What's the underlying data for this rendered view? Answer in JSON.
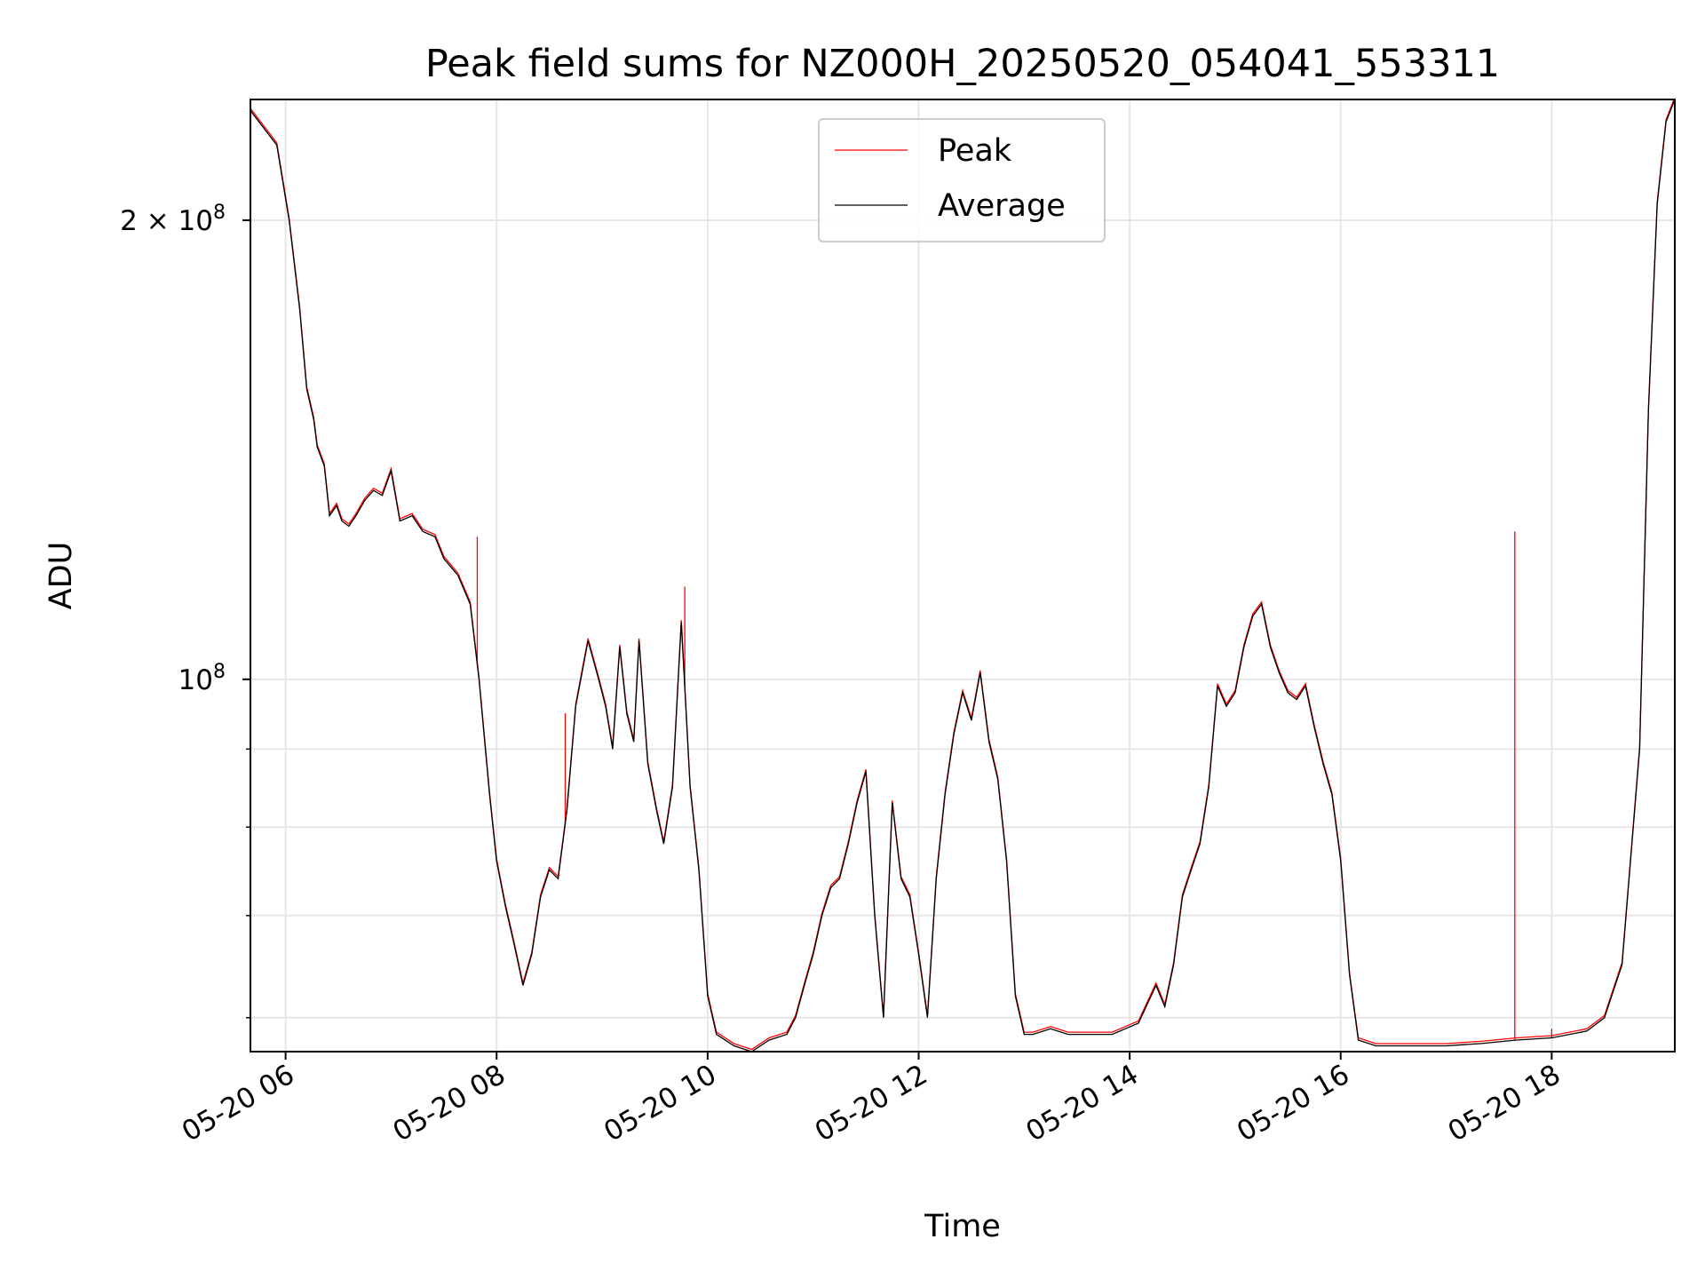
{
  "chart_data": {
    "type": "line",
    "title": "Peak field sums for NZ000H_20250520_054041_553311",
    "xlabel": "Time",
    "ylabel": "ADU",
    "x_scale": "time",
    "y_scale": "log",
    "xlim": [
      "2025-05-20 05:40",
      "2025-05-20 19:10"
    ],
    "ylim": [
      57000000,
      240000000
    ],
    "grid": true,
    "legend_position": "top-center",
    "x_ticks": [
      {
        "value": "2025-05-20 06:00",
        "label": "05-20 06"
      },
      {
        "value": "2025-05-20 08:00",
        "label": "05-20 08"
      },
      {
        "value": "2025-05-20 10:00",
        "label": "05-20 10"
      },
      {
        "value": "2025-05-20 12:00",
        "label": "05-20 12"
      },
      {
        "value": "2025-05-20 14:00",
        "label": "05-20 14"
      },
      {
        "value": "2025-05-20 16:00",
        "label": "05-20 16"
      },
      {
        "value": "2025-05-20 18:00",
        "label": "05-20 18"
      }
    ],
    "y_major_ticks": [
      {
        "value": 100000000,
        "base": "10",
        "exp": "8"
      },
      {
        "value": 200000000,
        "base": "2 × 10",
        "exp": "8"
      }
    ],
    "y_minor_ticks": [
      60000000,
      70000000,
      80000000,
      90000000
    ],
    "series": [
      {
        "name": "Peak",
        "color": "#ff0000",
        "spikes": [
          {
            "x": "2025-05-20 07:49",
            "y": 124000000
          },
          {
            "x": "2025-05-20 08:39",
            "y": 95000000
          },
          {
            "x": "2025-05-20 09:47",
            "y": 115000000
          },
          {
            "x": "2025-05-20 17:39",
            "y": 125000000
          },
          {
            "x": "2025-05-20 18:00",
            "y": 59000000
          }
        ]
      },
      {
        "name": "Average",
        "color": "#000000",
        "x": [
          "2025-05-20 05:40",
          "2025-05-20 05:55",
          "2025-05-20 06:02",
          "2025-05-20 06:08",
          "2025-05-20 06:12",
          "2025-05-20 06:16",
          "2025-05-20 06:18",
          "2025-05-20 06:22",
          "2025-05-20 06:25",
          "2025-05-20 06:29",
          "2025-05-20 06:32",
          "2025-05-20 06:36",
          "2025-05-20 06:40",
          "2025-05-20 06:45",
          "2025-05-20 06:50",
          "2025-05-20 06:55",
          "2025-05-20 07:00",
          "2025-05-20 07:05",
          "2025-05-20 07:12",
          "2025-05-20 07:18",
          "2025-05-20 07:25",
          "2025-05-20 07:30",
          "2025-05-20 07:38",
          "2025-05-20 07:45",
          "2025-05-20 07:50",
          "2025-05-20 07:56",
          "2025-05-20 08:00",
          "2025-05-20 08:05",
          "2025-05-20 08:10",
          "2025-05-20 08:15",
          "2025-05-20 08:20",
          "2025-05-20 08:25",
          "2025-05-20 08:30",
          "2025-05-20 08:35",
          "2025-05-20 08:40",
          "2025-05-20 08:45",
          "2025-05-20 08:52",
          "2025-05-20 08:58",
          "2025-05-20 09:02",
          "2025-05-20 09:06",
          "2025-05-20 09:10",
          "2025-05-20 09:14",
          "2025-05-20 09:18",
          "2025-05-20 09:21",
          "2025-05-20 09:26",
          "2025-05-20 09:31",
          "2025-05-20 09:35",
          "2025-05-20 09:40",
          "2025-05-20 09:45",
          "2025-05-20 09:50",
          "2025-05-20 09:55",
          "2025-05-20 10:00",
          "2025-05-20 10:05",
          "2025-05-20 10:15",
          "2025-05-20 10:25",
          "2025-05-20 10:35",
          "2025-05-20 10:45",
          "2025-05-20 10:50",
          "2025-05-20 10:55",
          "2025-05-20 11:00",
          "2025-05-20 11:05",
          "2025-05-20 11:10",
          "2025-05-20 11:15",
          "2025-05-20 11:20",
          "2025-05-20 11:25",
          "2025-05-20 11:30",
          "2025-05-20 11:35",
          "2025-05-20 11:40",
          "2025-05-20 11:45",
          "2025-05-20 11:50",
          "2025-05-20 11:55",
          "2025-05-20 12:00",
          "2025-05-20 12:05",
          "2025-05-20 12:10",
          "2025-05-20 12:15",
          "2025-05-20 12:20",
          "2025-05-20 12:25",
          "2025-05-20 12:30",
          "2025-05-20 12:35",
          "2025-05-20 12:40",
          "2025-05-20 12:45",
          "2025-05-20 12:50",
          "2025-05-20 12:55",
          "2025-05-20 13:00",
          "2025-05-20 13:05",
          "2025-05-20 13:15",
          "2025-05-20 13:25",
          "2025-05-20 13:35",
          "2025-05-20 13:50",
          "2025-05-20 14:05",
          "2025-05-20 14:15",
          "2025-05-20 14:20",
          "2025-05-20 14:25",
          "2025-05-20 14:30",
          "2025-05-20 14:35",
          "2025-05-20 14:40",
          "2025-05-20 14:45",
          "2025-05-20 14:50",
          "2025-05-20 14:55",
          "2025-05-20 15:00",
          "2025-05-20 15:05",
          "2025-05-20 15:10",
          "2025-05-20 15:15",
          "2025-05-20 15:20",
          "2025-05-20 15:25",
          "2025-05-20 15:30",
          "2025-05-20 15:35",
          "2025-05-20 15:40",
          "2025-05-20 15:45",
          "2025-05-20 15:50",
          "2025-05-20 15:55",
          "2025-05-20 16:00",
          "2025-05-20 16:05",
          "2025-05-20 16:10",
          "2025-05-20 16:20",
          "2025-05-20 16:40",
          "2025-05-20 17:00",
          "2025-05-20 17:20",
          "2025-05-20 17:40",
          "2025-05-20 18:00",
          "2025-05-20 18:20",
          "2025-05-20 18:30",
          "2025-05-20 18:40",
          "2025-05-20 18:50",
          "2025-05-20 18:55",
          "2025-05-20 19:00",
          "2025-05-20 19:05",
          "2025-05-20 19:10"
        ],
        "y": [
          236000000,
          224000000,
          200000000,
          175000000,
          155000000,
          148000000,
          142000000,
          138000000,
          128000000,
          130000000,
          127000000,
          126000000,
          128000000,
          131000000,
          133000000,
          132000000,
          137000000,
          127000000,
          128000000,
          125000000,
          124000000,
          120000000,
          117000000,
          112000000,
          100000000,
          84000000,
          76000000,
          71000000,
          67000000,
          63000000,
          66000000,
          72000000,
          75000000,
          74000000,
          82000000,
          96000000,
          106000000,
          100000000,
          96000000,
          90000000,
          105000000,
          95000000,
          91000000,
          106000000,
          88000000,
          82000000,
          78000000,
          85000000,
          109000000,
          85000000,
          75000000,
          62000000,
          58500000,
          57500000,
          57000000,
          58000000,
          58500000,
          60000000,
          63000000,
          66000000,
          70000000,
          73000000,
          74000000,
          78000000,
          83000000,
          87000000,
          70000000,
          60000000,
          83000000,
          74000000,
          72000000,
          66000000,
          60000000,
          74000000,
          84000000,
          92000000,
          98000000,
          94000000,
          101000000,
          91000000,
          86000000,
          76000000,
          62000000,
          58500000,
          58500000,
          59000000,
          58500000,
          58500000,
          58500000,
          59500000,
          63000000,
          61000000,
          65000000,
          72000000,
          75000000,
          78000000,
          85000000,
          99000000,
          96000000,
          98000000,
          105000000,
          110000000,
          112000000,
          105000000,
          101000000,
          98000000,
          97000000,
          99000000,
          93000000,
          88000000,
          84000000,
          76000000,
          64000000,
          58000000,
          57500000,
          57500000,
          57500000,
          57700000,
          58000000,
          58200000,
          58800000,
          60000000,
          65000000,
          90000000,
          150000000,
          205000000,
          232000000,
          240000000
        ]
      }
    ]
  }
}
